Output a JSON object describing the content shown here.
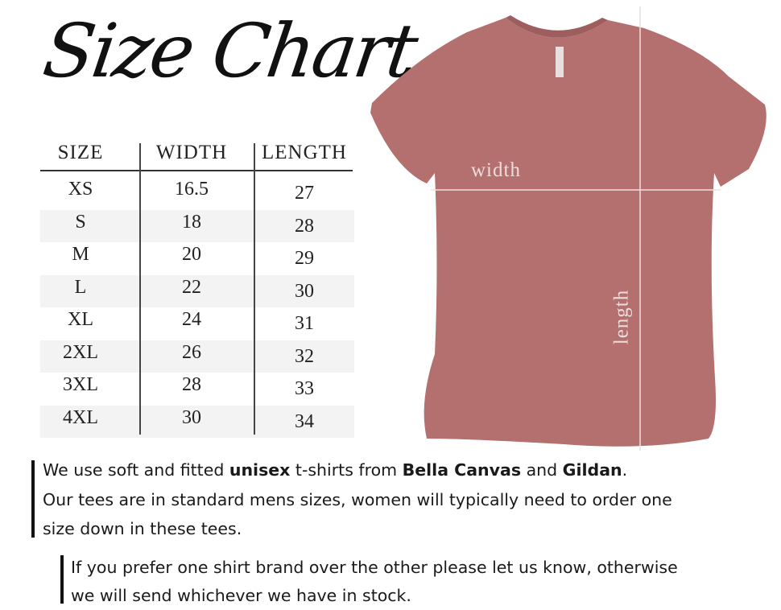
{
  "title": "Size Chart",
  "table": {
    "headers": [
      "SIZE",
      "WIDTH",
      "LENGTH"
    ],
    "rows": [
      [
        "XS",
        "16.5",
        "27"
      ],
      [
        "S",
        "18",
        "28"
      ],
      [
        "M",
        "20",
        "29"
      ],
      [
        "L",
        "22",
        "30"
      ],
      [
        "XL",
        "24",
        "31"
      ],
      [
        "2XL",
        "26",
        "32"
      ],
      [
        "3XL",
        "28",
        "33"
      ],
      [
        "4XL",
        "30",
        "34"
      ]
    ]
  },
  "shirt": {
    "width_label": "width",
    "length_label": "length",
    "color": "#b3706f"
  },
  "notes": {
    "line1": [
      "We use soft and fitted ",
      "unisex",
      " t-shirts from ",
      "Bella Canvas",
      " and ",
      "Gildan",
      "."
    ],
    "line2": "Our tees are in standard mens sizes, women will typically need to order one",
    "line3": "size down in these tees.",
    "line4": "If you prefer one shirt brand over the other please let us know, otherwise",
    "line5": "we will send whichever we have in stock."
  }
}
